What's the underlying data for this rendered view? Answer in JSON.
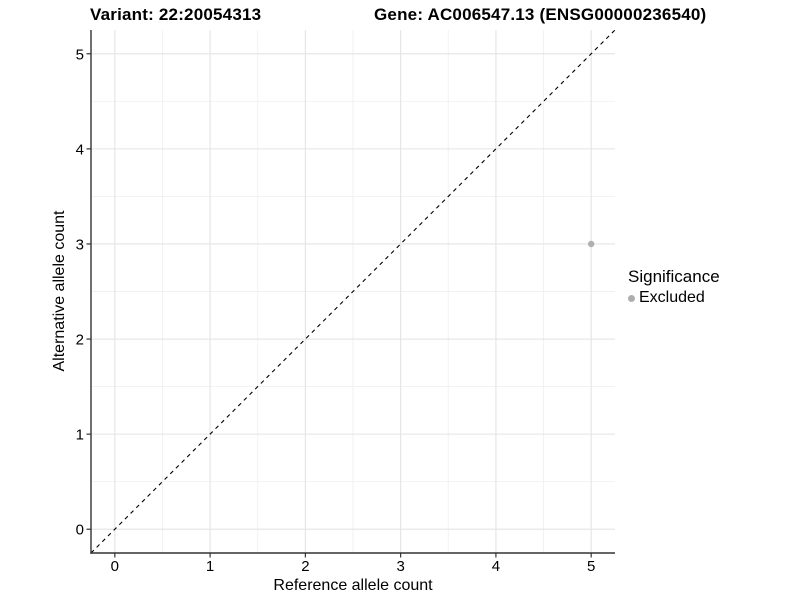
{
  "chart_data": {
    "type": "scatter",
    "title_left": "Variant: 22:20054313",
    "title_right": "Gene: AC006547.13 (ENSG00000236540)",
    "xlabel": "Reference allele count",
    "ylabel": "Alternative allele count",
    "xlim": [
      -0.25,
      5.25
    ],
    "ylim": [
      -0.25,
      5.25
    ],
    "x_ticks": [
      0,
      1,
      2,
      3,
      4,
      5
    ],
    "y_ticks": [
      0,
      1,
      2,
      3,
      4,
      5
    ],
    "x_minor": [
      0.5,
      1.5,
      2.5,
      3.5,
      4.5
    ],
    "y_minor": [
      0.5,
      1.5,
      2.5,
      3.5,
      4.5
    ],
    "grid": true,
    "identity_line": {
      "style": "dashed",
      "from": [
        -0.25,
        -0.25
      ],
      "to": [
        5.25,
        5.25
      ],
      "color": "#000000"
    },
    "points": [
      {
        "x": 5,
        "y": 3,
        "series": "Excluded"
      }
    ],
    "legend": {
      "title": "Significance",
      "position": "right",
      "items": [
        {
          "label": "Excluded",
          "color": "#aeaeae"
        }
      ]
    },
    "colors": {
      "point": "#b0b0b0",
      "grid_major": "#e4e4e4",
      "grid_minor": "#f1f1f1",
      "axis": "#333333",
      "tick_text": "#000000"
    }
  }
}
